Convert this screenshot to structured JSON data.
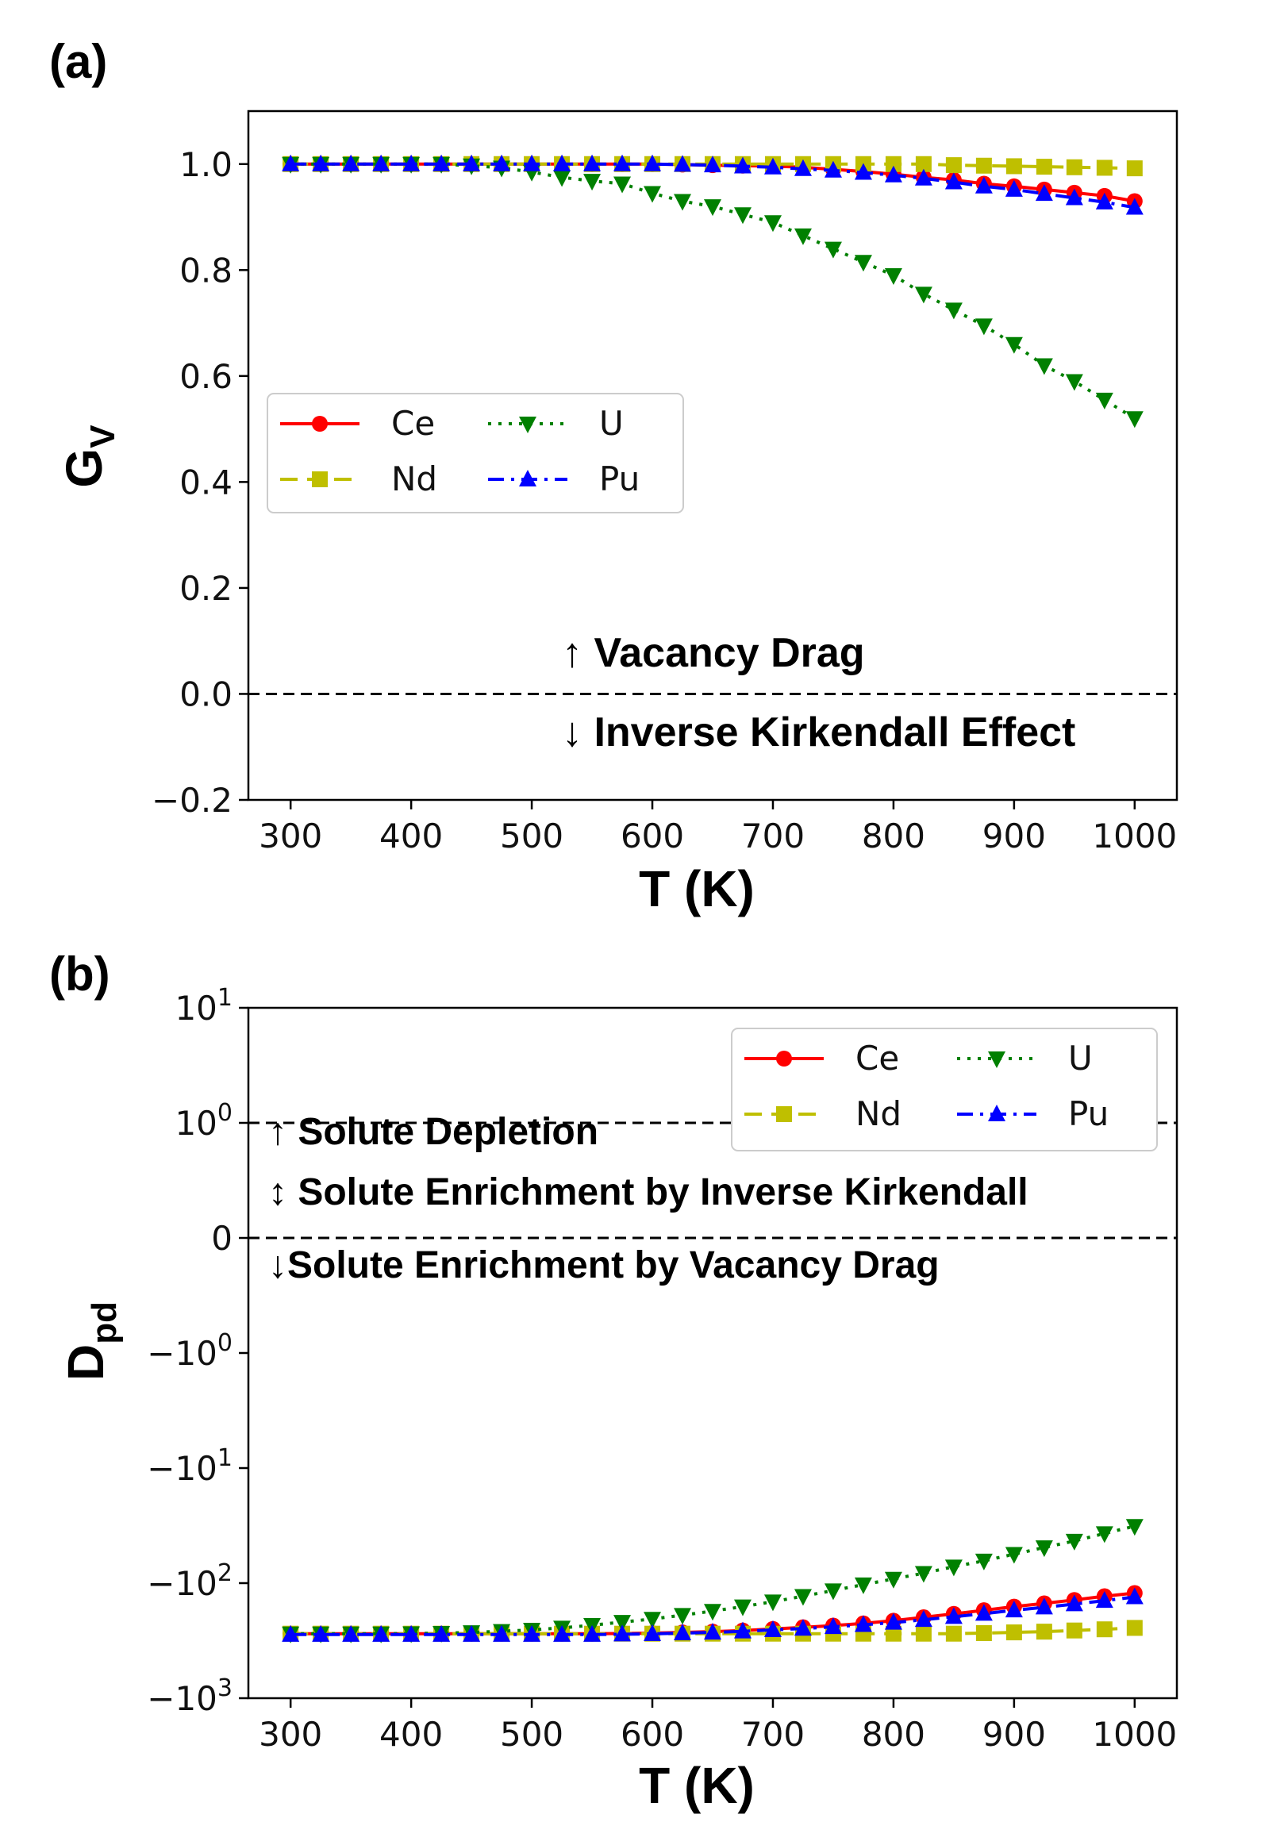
{
  "chart_data": [
    {
      "panel": "(a)",
      "type": "line",
      "ylabel_main": "G",
      "ylabel_sub": "V",
      "xlabel": "T (K)",
      "x": [
        300,
        325,
        350,
        375,
        400,
        425,
        450,
        475,
        500,
        525,
        550,
        575,
        600,
        625,
        650,
        675,
        700,
        725,
        750,
        775,
        800,
        825,
        850,
        875,
        900,
        925,
        950,
        975,
        1000
      ],
      "xlim": [
        265,
        1035
      ],
      "ylim": [
        -0.2,
        1.1
      ],
      "xticks": [
        300,
        400,
        500,
        600,
        700,
        800,
        900,
        1000
      ],
      "xtick_labels": [
        "300",
        "400",
        "500",
        "600",
        "700",
        "800",
        "900",
        "1000"
      ],
      "yticks": [
        -0.2,
        0.0,
        0.2,
        0.4,
        0.6,
        0.8,
        1.0
      ],
      "ytick_labels": [
        "−0.2",
        "0.0",
        "0.2",
        "0.4",
        "0.6",
        "0.8",
        "1.0"
      ],
      "reference_line": 0.0,
      "legend_placement": "center-left",
      "annotations": [
        "↑ Vacancy Drag",
        "↓ Inverse Kirkendall Effect"
      ],
      "series": [
        {
          "name": "Ce",
          "color": "#ff0000",
          "line": "solid",
          "marker": "circle",
          "values": [
            1.0,
            1.0,
            1.0,
            1.0,
            1.0,
            1.0,
            1.0,
            1.0,
            1.0,
            1.0,
            1.0,
            1.0,
            1.0,
            0.999,
            0.998,
            0.997,
            0.996,
            0.994,
            0.99,
            0.986,
            0.981,
            0.975,
            0.97,
            0.963,
            0.958,
            0.952,
            0.946,
            0.94,
            0.93
          ]
        },
        {
          "name": "Nd",
          "color": "#bfbf00",
          "line": "dashed",
          "marker": "square",
          "values": [
            1.0,
            1.0,
            1.0,
            1.0,
            1.0,
            1.0,
            1.0,
            1.0,
            1.0,
            1.0,
            1.0,
            1.0,
            1.0,
            1.0,
            1.0,
            1.0,
            1.0,
            1.0,
            1.0,
            1.0,
            1.0,
            1.0,
            0.998,
            0.997,
            0.996,
            0.995,
            0.994,
            0.993,
            0.992
          ]
        },
        {
          "name": "U",
          "color": "#008000",
          "line": "dotted",
          "marker": "triangle-down",
          "values": [
            1.0,
            1.0,
            1.0,
            1.0,
            1.0,
            1.0,
            0.997,
            0.993,
            0.985,
            0.975,
            0.968,
            0.963,
            0.945,
            0.93,
            0.92,
            0.905,
            0.89,
            0.865,
            0.84,
            0.815,
            0.79,
            0.755,
            0.725,
            0.695,
            0.66,
            0.62,
            0.59,
            0.555,
            0.52
          ]
        },
        {
          "name": "Pu",
          "color": "#0000ff",
          "line": "dashdot",
          "marker": "triangle-up",
          "values": [
            1.0,
            1.0,
            1.0,
            1.0,
            1.0,
            1.0,
            1.0,
            1.0,
            1.0,
            1.0,
            1.0,
            1.0,
            1.0,
            0.999,
            0.998,
            0.996,
            0.994,
            0.991,
            0.988,
            0.984,
            0.979,
            0.973,
            0.966,
            0.958,
            0.952,
            0.944,
            0.936,
            0.928,
            0.918
          ]
        }
      ]
    },
    {
      "panel": "(b)",
      "type": "line",
      "ylabel_main": "D",
      "ylabel_sub": "pd",
      "xlabel": "T (K)",
      "yscale": "symlog (linthresh 1)",
      "x": [
        300,
        325,
        350,
        375,
        400,
        425,
        450,
        475,
        500,
        525,
        550,
        575,
        600,
        625,
        650,
        675,
        700,
        725,
        750,
        775,
        800,
        825,
        850,
        875,
        900,
        925,
        950,
        975,
        1000
      ],
      "xlim": [
        265,
        1035
      ],
      "ylim": [
        -1000,
        10
      ],
      "xticks": [
        300,
        400,
        500,
        600,
        700,
        800,
        900,
        1000
      ],
      "xtick_labels": [
        "300",
        "400",
        "500",
        "600",
        "700",
        "800",
        "900",
        "1000"
      ],
      "ytick_values": [
        10,
        1,
        0,
        -1,
        -10,
        -100,
        -1000
      ],
      "ytick_labels": [
        [
          "10",
          "1"
        ],
        [
          "10",
          "0"
        ],
        [
          "0",
          ""
        ],
        [
          "−10",
          "0"
        ],
        [
          "−10",
          "1"
        ],
        [
          "−10",
          "2"
        ],
        [
          "−10",
          "3"
        ]
      ],
      "reference_lines": [
        1,
        0
      ],
      "legend_placement": "top-right",
      "annotations": [
        "↑ Solute Depletion",
        "↕ Solute Enrichment by Inverse Kirkendall",
        "↓Solute Enrichment by Vacancy Drag"
      ],
      "series": [
        {
          "name": "Ce",
          "color": "#ff0000",
          "line": "solid",
          "marker": "circle",
          "values": [
            -275,
            -275,
            -275,
            -275,
            -275,
            -275,
            -275,
            -275,
            -275,
            -275,
            -275,
            -274,
            -272,
            -268,
            -264,
            -258,
            -250,
            -242,
            -234,
            -224,
            -212,
            -198,
            -185,
            -172,
            -160,
            -150,
            -140,
            -130,
            -122
          ]
        },
        {
          "name": "Nd",
          "color": "#bfbf00",
          "line": "dashed",
          "marker": "square",
          "values": [
            -275,
            -275,
            -275,
            -275,
            -275,
            -275,
            -275,
            -275,
            -275,
            -275,
            -275,
            -275,
            -275,
            -275,
            -275,
            -275,
            -275,
            -275,
            -275,
            -275,
            -275,
            -275,
            -275,
            -272,
            -268,
            -264,
            -258,
            -252,
            -245
          ]
        },
        {
          "name": "U",
          "color": "#008000",
          "line": "dotted",
          "marker": "triangle-down",
          "values": [
            -275,
            -275,
            -275,
            -275,
            -274,
            -272,
            -268,
            -262,
            -255,
            -245,
            -232,
            -218,
            -205,
            -190,
            -175,
            -160,
            -145,
            -130,
            -116,
            -103,
            -92,
            -82,
            -72,
            -64,
            -56,
            -49,
            -43,
            -37,
            -32
          ]
        },
        {
          "name": "Pu",
          "color": "#0000ff",
          "line": "dashdot",
          "marker": "triangle-up",
          "values": [
            -280,
            -280,
            -280,
            -280,
            -280,
            -280,
            -280,
            -280,
            -280,
            -280,
            -280,
            -278,
            -276,
            -272,
            -268,
            -262,
            -255,
            -248,
            -240,
            -230,
            -220,
            -208,
            -196,
            -184,
            -172,
            -162,
            -152,
            -142,
            -132
          ]
        }
      ]
    }
  ]
}
